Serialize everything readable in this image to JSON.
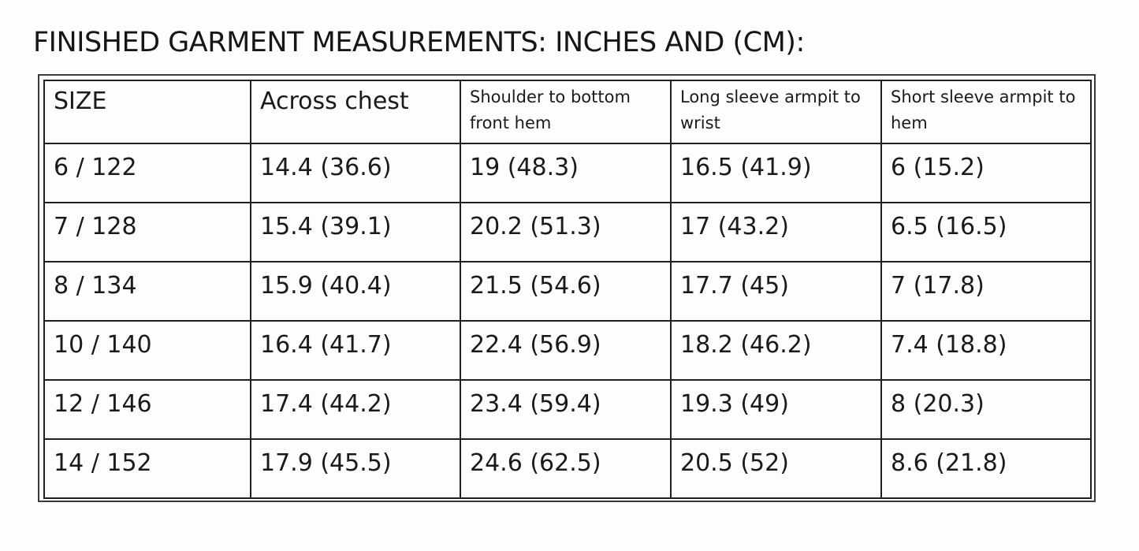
{
  "title": "FINISHED GARMENT MEASUREMENTS: INCHES AND (CM):",
  "table": {
    "headers": [
      "SIZE",
      "Across chest",
      "Shoulder to bottom front hem",
      "Long sleeve armpit to wrist",
      "Short sleeve armpit to hem"
    ],
    "rows": [
      [
        "6 / 122",
        "14.4 (36.6)",
        "19 (48.3)",
        "16.5 (41.9)",
        "6 (15.2)"
      ],
      [
        "7 / 128",
        "15.4 (39.1)",
        "20.2 (51.3)",
        "17 (43.2)",
        "6.5 (16.5)"
      ],
      [
        "8 / 134",
        "15.9 (40.4)",
        "21.5 (54.6)",
        "17.7 (45)",
        "7 (17.8)"
      ],
      [
        "10 / 140",
        "16.4 (41.7)",
        "22.4 (56.9)",
        "18.2 (46.2)",
        "7.4 (18.8)"
      ],
      [
        "12 / 146",
        "17.4 (44.2)",
        "23.4 (59.4)",
        "19.3 (49)",
        "8 (20.3)"
      ],
      [
        "14 / 152",
        "17.9 (45.5)",
        "24.6 (62.5)",
        "20.5 (52)",
        "8.6 (21.8)"
      ]
    ]
  }
}
